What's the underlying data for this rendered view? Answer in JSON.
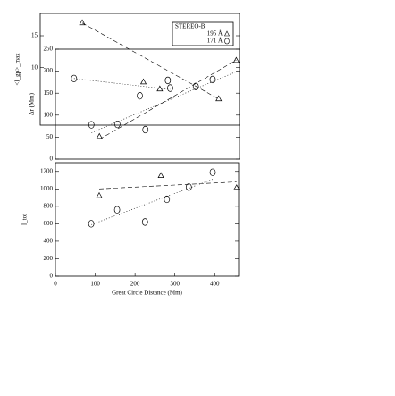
{
  "chart_data": [
    {
      "type": "scatter",
      "y_label": "<I_gp>_max",
      "xlim": [
        0,
        460
      ],
      "ylim": [
        1,
        18.5
      ],
      "yticks": [
        10,
        15
      ],
      "legend": {
        "title": "STEREO-B",
        "position": "upper right"
      },
      "series": [
        {
          "name": "195 Å",
          "marker": "triangle",
          "x": [
            97,
            412
          ],
          "values": [
            17.0,
            5.1
          ]
        },
        {
          "name": "171 Å",
          "marker": "circle",
          "x": [
            78,
            230,
            300
          ],
          "values": [
            8.3,
            5.6,
            6.8
          ]
        },
        {
          "line": "dashed",
          "x": [
            97,
            412
          ],
          "values": [
            17.0,
            5.1
          ]
        },
        {
          "line": "dotted",
          "x": [
            78,
            300
          ],
          "values": [
            8.3,
            6.6
          ]
        }
      ]
    },
    {
      "type": "scatter",
      "y_label": "Δr (Mm)",
      "xlim": [
        0,
        460
      ],
      "ylim": [
        0,
        250
      ],
      "yticks": [
        0,
        50,
        100,
        150,
        200,
        250
      ],
      "series": [
        {
          "marker": "circle",
          "x": [
            90,
            155,
            225,
            281,
            351,
            393
          ],
          "values": [
            78,
            79,
            67,
            179,
            165,
            181
          ]
        },
        {
          "marker": "triangle",
          "x": [
            110,
            220,
            261,
            452
          ],
          "values": [
            51,
            175,
            159,
            224
          ]
        },
        {
          "line": "dotted",
          "x": [
            90,
            455
          ],
          "values": [
            60,
            200
          ]
        },
        {
          "line": "dashed",
          "x": [
            110,
            452
          ],
          "values": [
            45,
            225
          ]
        }
      ]
    },
    {
      "type": "scatter",
      "y_label": "I_tot",
      "x_label": "Great Circle Distance (Mm)",
      "xlim": [
        0,
        460
      ],
      "ylim": [
        0,
        1300
      ],
      "xticks": [
        0,
        100,
        200,
        300,
        400
      ],
      "yticks": [
        0,
        200,
        400,
        600,
        800,
        1000,
        1200
      ],
      "series": [
        {
          "marker": "circle",
          "x": [
            90,
            155,
            225,
            280,
            335,
            395
          ],
          "values": [
            600,
            760,
            620,
            880,
            1020,
            1190
          ]
        },
        {
          "marker": "triangle",
          "x": [
            110,
            265,
            455
          ],
          "values": [
            920,
            1150,
            1010
          ]
        },
        {
          "line": "dotted",
          "x": [
            90,
            395
          ],
          "values": [
            590,
            1110
          ]
        },
        {
          "line": "dashed",
          "x": [
            110,
            455
          ],
          "values": [
            1000,
            1080
          ]
        }
      ]
    }
  ]
}
